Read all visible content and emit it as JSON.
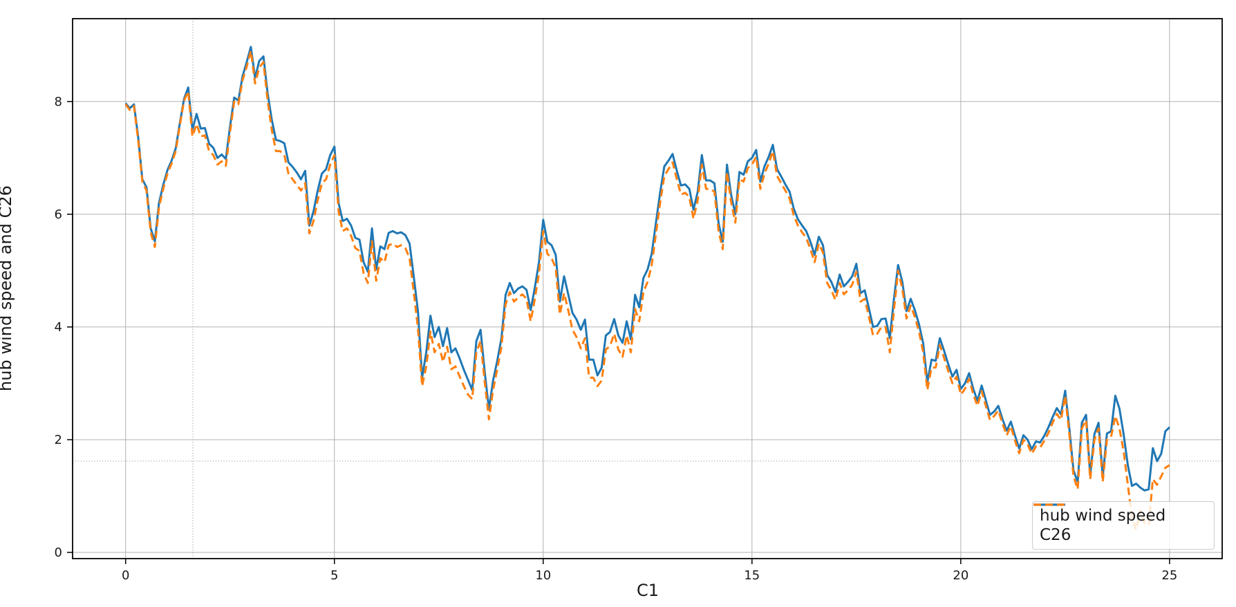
{
  "chart_data": {
    "type": "line",
    "title": "",
    "xlabel": "C1",
    "ylabel": "hub wind speed and C26",
    "x_ticks": [
      0,
      5,
      10,
      15,
      20,
      25
    ],
    "y_ticks": [
      0,
      2,
      4,
      6,
      8
    ],
    "xlim": [
      -1.27,
      26.26
    ],
    "ylim": [
      -0.11,
      9.47
    ],
    "grid": true,
    "grid_color": "#b0b0b0",
    "crosshair": {
      "x": 1.61,
      "y": 1.62,
      "style": "dotted",
      "color": "#a6a6a6"
    },
    "legend_position": "lower right",
    "background": "#ffffff",
    "spine_color": "#000000",
    "text_color": "#1a1a1a",
    "series": [
      {
        "name": "hub wind speed",
        "color": "#1f77b4",
        "line_style": "solid",
        "line_width": 3,
        "x0": 0,
        "dx": 0.1,
        "values": [
          7.97,
          7.88,
          7.95,
          7.38,
          6.62,
          6.48,
          5.75,
          5.52,
          6.2,
          6.52,
          6.78,
          6.95,
          7.17,
          7.62,
          8.05,
          8.25,
          7.5,
          7.78,
          7.52,
          7.53,
          7.25,
          7.18,
          7.0,
          7.06,
          6.98,
          7.55,
          8.07,
          8.02,
          8.45,
          8.7,
          8.97,
          8.42,
          8.72,
          8.8,
          8.15,
          7.68,
          7.32,
          7.3,
          7.26,
          6.92,
          6.84,
          6.74,
          6.62,
          6.77,
          5.8,
          6.05,
          6.42,
          6.72,
          6.8,
          7.05,
          7.2,
          6.2,
          5.88,
          5.92,
          5.8,
          5.58,
          5.55,
          5.15,
          4.98,
          5.75,
          5.02,
          5.43,
          5.38,
          5.67,
          5.7,
          5.66,
          5.68,
          5.63,
          5.48,
          4.9,
          4.28,
          3.1,
          3.55,
          4.2,
          3.82,
          4.0,
          3.66,
          3.98,
          3.55,
          3.62,
          3.44,
          3.24,
          3.06,
          2.88,
          3.75,
          3.95,
          3.2,
          2.54,
          3.05,
          3.4,
          3.8,
          4.57,
          4.78,
          4.6,
          4.68,
          4.72,
          4.66,
          4.3,
          4.7,
          5.15,
          5.9,
          5.51,
          5.45,
          5.28,
          4.45,
          4.9,
          4.58,
          4.25,
          4.13,
          3.95,
          4.13,
          3.42,
          3.42,
          3.14,
          3.28,
          3.85,
          3.91,
          4.14,
          3.85,
          3.72,
          4.1,
          3.78,
          4.57,
          4.35,
          4.87,
          5.02,
          5.3,
          5.85,
          6.38,
          6.85,
          6.95,
          7.07,
          6.77,
          6.51,
          6.53,
          6.45,
          6.08,
          6.4,
          7.05,
          6.6,
          6.6,
          6.55,
          5.84,
          5.51,
          6.88,
          6.35,
          6.0,
          6.75,
          6.7,
          6.94,
          7.0,
          7.14,
          6.58,
          6.85,
          7.02,
          7.23,
          6.8,
          6.67,
          6.53,
          6.4,
          6.1,
          5.91,
          5.8,
          5.7,
          5.51,
          5.28,
          5.6,
          5.45,
          4.92,
          4.8,
          4.62,
          4.93,
          4.72,
          4.8,
          4.9,
          5.12,
          4.6,
          4.65,
          4.33,
          4.0,
          4.02,
          4.14,
          4.15,
          3.8,
          4.5,
          5.1,
          4.8,
          4.28,
          4.5,
          4.3,
          4.05,
          3.71,
          3.02,
          3.42,
          3.4,
          3.8,
          3.58,
          3.34,
          3.12,
          3.24,
          2.9,
          3.0,
          3.18,
          2.9,
          2.69,
          2.96,
          2.7,
          2.44,
          2.5,
          2.6,
          2.36,
          2.16,
          2.32,
          2.07,
          1.84,
          2.08,
          2.0,
          1.83,
          1.97,
          1.95,
          2.07,
          2.22,
          2.4,
          2.56,
          2.45,
          2.87,
          2.2,
          1.45,
          1.25,
          2.3,
          2.44,
          1.37,
          2.1,
          2.3,
          1.34,
          2.11,
          2.15,
          2.78,
          2.55,
          2.1,
          1.55,
          1.18,
          1.22,
          1.15,
          1.1,
          1.12,
          1.85,
          1.62,
          1.75,
          2.15,
          2.22
        ]
      },
      {
        "name": "C26",
        "color": "#ff7f0e",
        "line_style": "dashed",
        "line_width": 3,
        "x0": 0,
        "dx": 0.1,
        "values": [
          7.95,
          7.85,
          7.92,
          7.32,
          6.58,
          6.42,
          5.68,
          5.42,
          6.12,
          6.45,
          6.72,
          6.9,
          7.12,
          7.58,
          8.02,
          8.18,
          7.38,
          7.6,
          7.38,
          7.4,
          7.12,
          7.05,
          6.88,
          6.94,
          6.86,
          7.45,
          8.0,
          7.95,
          8.38,
          8.62,
          8.9,
          8.32,
          8.6,
          8.7,
          8.02,
          7.5,
          7.12,
          7.12,
          7.05,
          6.72,
          6.62,
          6.52,
          6.42,
          6.55,
          5.66,
          5.88,
          6.25,
          6.55,
          6.62,
          6.88,
          7.05,
          6.05,
          5.7,
          5.75,
          5.62,
          5.4,
          5.35,
          4.95,
          4.78,
          5.52,
          4.82,
          5.22,
          5.15,
          5.45,
          5.48,
          5.42,
          5.45,
          5.4,
          5.22,
          4.62,
          3.98,
          2.95,
          3.3,
          3.92,
          3.55,
          3.7,
          3.38,
          3.65,
          3.25,
          3.3,
          3.12,
          2.95,
          2.8,
          2.72,
          3.55,
          3.75,
          3.02,
          2.36,
          2.88,
          3.25,
          3.65,
          4.4,
          4.62,
          4.45,
          4.52,
          4.58,
          4.5,
          4.1,
          4.5,
          4.95,
          5.7,
          5.3,
          5.22,
          5.05,
          4.22,
          4.6,
          4.3,
          3.95,
          3.82,
          3.62,
          3.8,
          3.1,
          3.1,
          2.95,
          3.05,
          3.6,
          3.66,
          3.88,
          3.6,
          3.47,
          3.85,
          3.55,
          4.32,
          4.1,
          4.62,
          4.8,
          5.1,
          5.65,
          6.2,
          6.68,
          6.8,
          6.92,
          6.62,
          6.35,
          6.38,
          6.3,
          5.92,
          6.25,
          6.88,
          6.45,
          6.45,
          6.4,
          5.7,
          5.38,
          6.75,
          6.22,
          5.85,
          6.62,
          6.58,
          6.82,
          6.88,
          7.02,
          6.45,
          6.72,
          6.9,
          7.12,
          6.68,
          6.55,
          6.42,
          6.28,
          5.98,
          5.8,
          5.68,
          5.58,
          5.38,
          5.15,
          5.48,
          5.32,
          4.78,
          4.65,
          4.48,
          4.78,
          4.58,
          4.65,
          4.75,
          4.98,
          4.45,
          4.5,
          4.18,
          3.85,
          3.88,
          4.0,
          4.0,
          3.55,
          4.3,
          5.0,
          4.68,
          4.15,
          4.38,
          4.18,
          3.92,
          3.55,
          2.88,
          3.28,
          3.28,
          3.68,
          3.45,
          3.22,
          3.0,
          3.12,
          2.8,
          2.9,
          3.08,
          2.8,
          2.6,
          2.86,
          2.6,
          2.35,
          2.42,
          2.52,
          2.28,
          2.08,
          2.24,
          1.98,
          1.76,
          2.0,
          1.92,
          1.75,
          1.88,
          1.86,
          1.98,
          2.12,
          2.3,
          2.46,
          2.35,
          2.78,
          2.1,
          1.35,
          1.12,
          2.2,
          2.35,
          1.3,
          2.0,
          2.2,
          1.25,
          2.0,
          2.05,
          2.42,
          2.2,
          1.8,
          1.2,
          0.62,
          0.4,
          0.75,
          0.52,
          0.48,
          1.3,
          1.2,
          1.35,
          1.5,
          1.55
        ]
      }
    ],
    "legend": {
      "entries": [
        {
          "label": "hub wind speed"
        },
        {
          "label": "C26"
        }
      ]
    }
  }
}
